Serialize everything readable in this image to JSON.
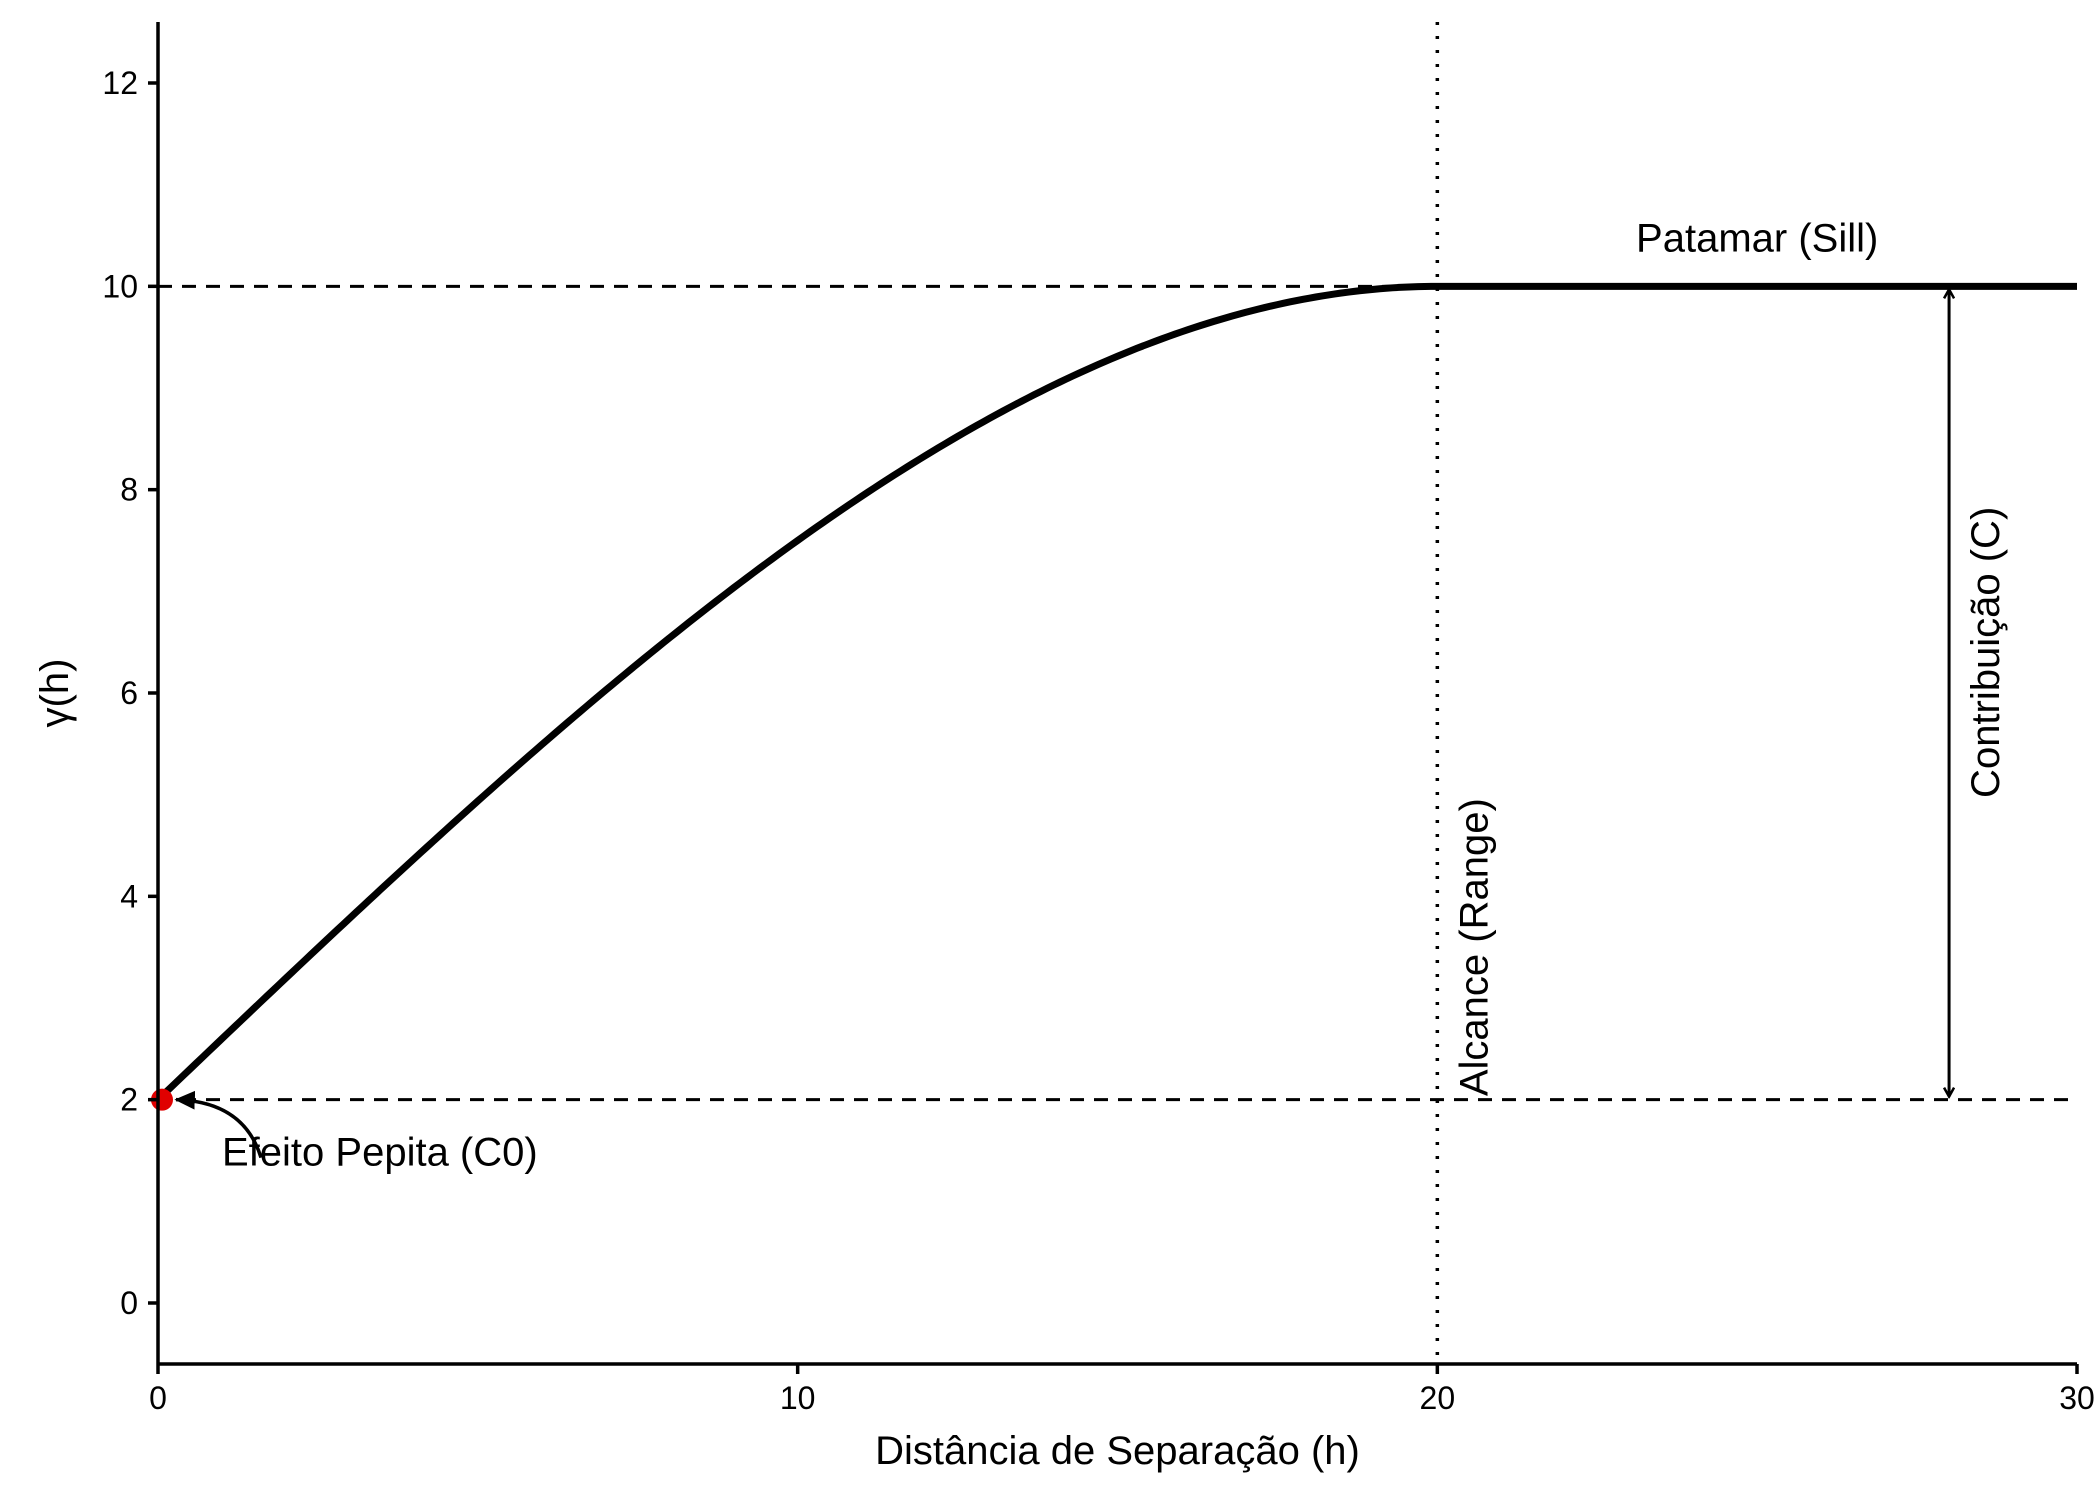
{
  "chart_data": {
    "type": "line",
    "title": "",
    "xlabel": "Distância de Separação (h)",
    "ylabel": "γ(h)",
    "xlim": [
      0,
      30
    ],
    "ylim": [
      -0.6,
      12.6
    ],
    "x_ticks": [
      0,
      10,
      20,
      30
    ],
    "y_ticks": [
      0,
      2,
      4,
      6,
      8,
      10,
      12
    ],
    "grid": false,
    "legend": "none",
    "model": "spherical",
    "nugget": 2,
    "sill": 10,
    "range": 20,
    "series": [
      {
        "x": [
          0,
          2,
          4,
          6,
          8,
          10,
          12,
          14,
          16,
          18,
          20,
          22,
          24,
          26,
          28,
          30
        ],
        "values": [
          2,
          3.196,
          4.368,
          5.492,
          6.544,
          7.5,
          8.336,
          9.028,
          9.552,
          9.884,
          10,
          10,
          10,
          10,
          10,
          10
        ],
        "color": "#000000"
      }
    ],
    "reference_lines": {
      "nugget_level": 2,
      "sill_level": 10,
      "range_x": 20
    },
    "contribution_arrow": {
      "x": 28,
      "from": 2,
      "to": 10
    },
    "nugget_point": {
      "x": 0,
      "y": 2,
      "color": "#e00000"
    },
    "annotations": {
      "sill": "Patamar (Sill)",
      "range": "Alcance (Range)",
      "contribution": "Contribuição (C)",
      "nugget": "Efeito Pepita (C0)"
    }
  }
}
